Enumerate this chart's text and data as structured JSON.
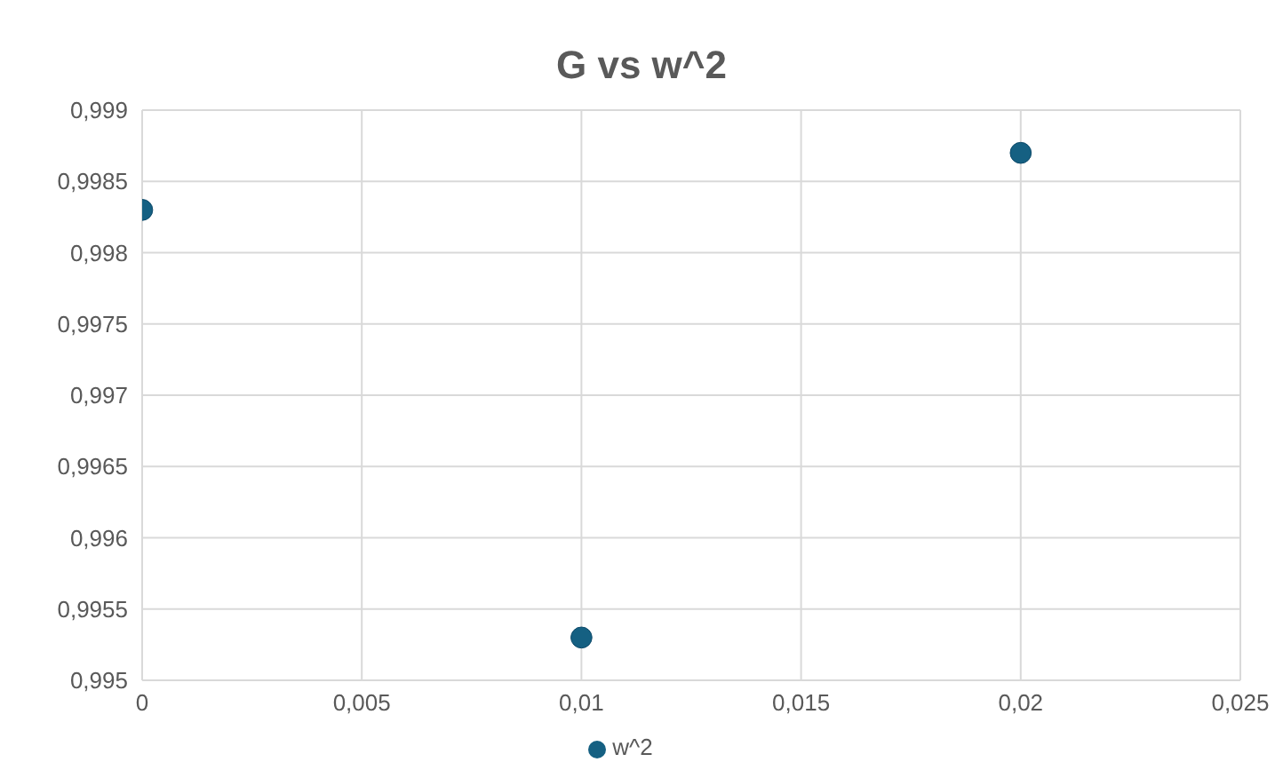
{
  "chart_data": {
    "type": "scatter",
    "title": "G vs w^2",
    "x": [
      0,
      0.01,
      0.02
    ],
    "series": [
      {
        "name": "w^2",
        "color": "#156082",
        "values": [
          0.9983,
          0.9953,
          0.9987
        ]
      }
    ],
    "xlim": [
      0,
      0.025
    ],
    "xticks": [
      0,
      {
        "value": 0.005,
        "label": "0,005"
      },
      {
        "value": 0.01,
        "label": "0,01"
      },
      {
        "value": 0.015,
        "label": "0,015"
      },
      {
        "value": 0.02,
        "label": "0,02"
      },
      {
        "value": 0.025,
        "label": "0,025"
      }
    ],
    "ylim": [
      0.995,
      0.999
    ],
    "yticks": [
      {
        "value": 0.995,
        "label": "0,995"
      },
      {
        "value": 0.9955,
        "label": "0,9955"
      },
      {
        "value": 0.996,
        "label": "0,996"
      },
      {
        "value": 0.9965,
        "label": "0,9965"
      },
      {
        "value": 0.997,
        "label": "0,997"
      },
      {
        "value": 0.9975,
        "label": "0,9975"
      },
      {
        "value": 0.998,
        "label": "0,998"
      },
      {
        "value": 0.9985,
        "label": "0,9985"
      },
      {
        "value": 0.999,
        "label": "0,999"
      }
    ],
    "grid": true,
    "legend": "bottom",
    "marker": "circle"
  }
}
